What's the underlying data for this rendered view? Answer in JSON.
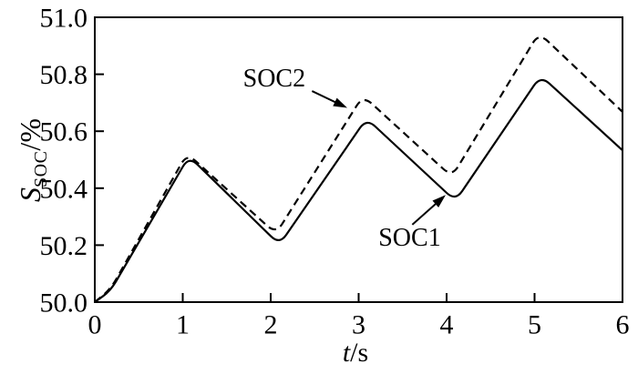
{
  "figure": {
    "background": "#ffffff",
    "ink_color": "#000000"
  },
  "chart_data": {
    "type": "line",
    "title": "",
    "xlabel_main": "t",
    "xlabel_unit": "/s",
    "ylabel_main": "S",
    "ylabel_sub": "SOC",
    "ylabel_unit": "/%",
    "xlim": [
      0,
      6
    ],
    "ylim": [
      50.0,
      51.0
    ],
    "grid": false,
    "legend_position": "inline-annotations",
    "xticks": {
      "values": [
        0,
        1,
        2,
        3,
        4,
        5,
        6
      ],
      "labels": [
        "0",
        "1",
        "2",
        "3",
        "4",
        "5",
        "6"
      ]
    },
    "yticks": {
      "values": [
        50.0,
        50.2,
        50.4,
        50.6,
        50.8,
        51.0
      ],
      "labels": [
        "50.0",
        "50.2",
        "50.4",
        "50.6",
        "50.8",
        "51.0"
      ]
    },
    "series": [
      {
        "name": "SOC1",
        "line_style": "solid",
        "color": "#000000",
        "points": [
          [
            0,
            50.0
          ],
          [
            0.18,
            50.04
          ],
          [
            1.07,
            50.512
          ],
          [
            2.1,
            50.202
          ],
          [
            3.09,
            50.645
          ],
          [
            4.1,
            50.355
          ],
          [
            5.07,
            50.795
          ],
          [
            6.0,
            50.533
          ]
        ]
      },
      {
        "name": "SOC2",
        "line_style": "dashed",
        "color": "#000000",
        "points": [
          [
            0,
            50.0
          ],
          [
            0.18,
            50.046
          ],
          [
            1.05,
            50.522
          ],
          [
            2.06,
            50.24
          ],
          [
            3.05,
            50.725
          ],
          [
            4.06,
            50.44
          ],
          [
            5.05,
            50.945
          ],
          [
            6.0,
            50.668
          ]
        ]
      }
    ],
    "annotations": [
      {
        "label": "SOC2",
        "series": "SOC2",
        "text_pos": [
          2.04,
          50.783
        ],
        "arrow_from": [
          2.47,
          50.741
        ],
        "arrow_to": [
          2.87,
          50.682
        ]
      },
      {
        "label": "SOC1",
        "series": "SOC1",
        "text_pos": [
          3.58,
          50.224
        ],
        "arrow_from": [
          3.61,
          50.272
        ],
        "arrow_to": [
          3.99,
          50.376
        ]
      }
    ]
  }
}
